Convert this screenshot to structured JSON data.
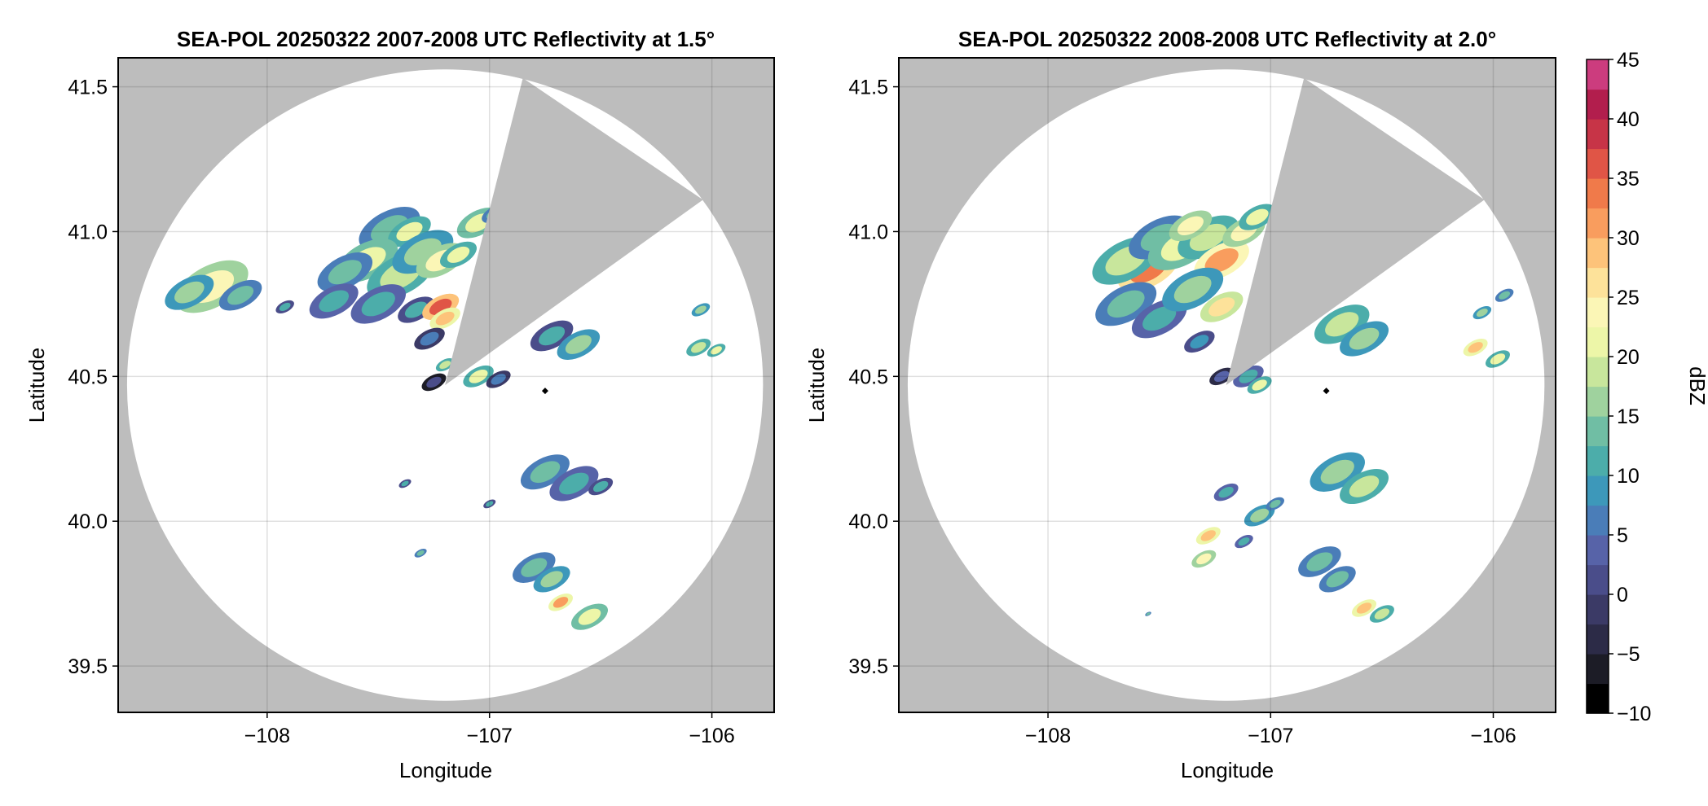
{
  "chart_data": [
    {
      "type": "heatmap",
      "title": "SEA-POL 20250322 2007-2008 UTC Reflectivity at 1.5°",
      "xlabel": "Longitude",
      "ylabel": "Latitude",
      "xlim": [
        -108.67,
        -105.72
      ],
      "ylim": [
        39.34,
        41.6
      ],
      "xticks": [
        -108,
        -107,
        -106
      ],
      "xtick_labels": [
        "−108",
        "−107",
        "−106"
      ],
      "yticks": [
        39.5,
        40.0,
        40.5,
        41.0,
        41.5
      ],
      "ytick_labels": [
        "39.5",
        "40.0",
        "40.5",
        "41.0",
        "41.5"
      ],
      "grid": true,
      "background_color": "#bdbdbd",
      "coverage": {
        "center_lon": -107.2,
        "center_lat": 40.47,
        "radius_lat": 1.09,
        "radius_lon": 1.43,
        "blocked_sector_lonlat": [
          [
            -107.2,
            40.47
          ],
          [
            -106.85,
            41.53
          ],
          [
            -106.04,
            41.11
          ]
        ]
      },
      "marker": {
        "lon": -106.75,
        "lat": 40.45,
        "shape": "diamond",
        "color": "#000000"
      },
      "echoes": [
        {
          "lon": -108.25,
          "lat": 40.81,
          "dbz": 24,
          "size": 0.12
        },
        {
          "lon": -108.35,
          "lat": 40.79,
          "dbz": 16,
          "size": 0.08
        },
        {
          "lon": -108.12,
          "lat": 40.78,
          "dbz": 14,
          "size": 0.07
        },
        {
          "lon": -107.92,
          "lat": 40.74,
          "dbz": 10,
          "size": 0.03
        },
        {
          "lon": -107.45,
          "lat": 41.01,
          "dbz": 14,
          "size": 0.1
        },
        {
          "lon": -107.36,
          "lat": 41.0,
          "dbz": 20,
          "size": 0.07
        },
        {
          "lon": -107.55,
          "lat": 40.9,
          "dbz": 22,
          "size": 0.1
        },
        {
          "lon": -107.65,
          "lat": 40.86,
          "dbz": 14,
          "size": 0.09
        },
        {
          "lon": -107.7,
          "lat": 40.76,
          "dbz": 12,
          "size": 0.08
        },
        {
          "lon": -107.4,
          "lat": 40.85,
          "dbz": 18,
          "size": 0.11
        },
        {
          "lon": -107.3,
          "lat": 40.93,
          "dbz": 16,
          "size": 0.1
        },
        {
          "lon": -107.22,
          "lat": 40.9,
          "dbz": 24,
          "size": 0.08
        },
        {
          "lon": -107.14,
          "lat": 40.92,
          "dbz": 20,
          "size": 0.06
        },
        {
          "lon": -107.05,
          "lat": 41.03,
          "dbz": 22,
          "size": 0.07
        },
        {
          "lon": -106.98,
          "lat": 41.06,
          "dbz": 14,
          "size": 0.04
        },
        {
          "lon": -107.5,
          "lat": 40.75,
          "dbz": 12,
          "size": 0.09
        },
        {
          "lon": -107.33,
          "lat": 40.73,
          "dbz": 10,
          "size": 0.06
        },
        {
          "lon": -107.22,
          "lat": 40.74,
          "dbz": 36,
          "size": 0.06
        },
        {
          "lon": -107.2,
          "lat": 40.7,
          "dbz": 28,
          "size": 0.05
        },
        {
          "lon": -107.27,
          "lat": 40.63,
          "dbz": 6,
          "size": 0.05
        },
        {
          "lon": -107.2,
          "lat": 40.54,
          "dbz": 18,
          "size": 0.03
        },
        {
          "lon": -107.25,
          "lat": 40.48,
          "dbz": 2,
          "size": 0.04
        },
        {
          "lon": -107.05,
          "lat": 40.5,
          "dbz": 20,
          "size": 0.05
        },
        {
          "lon": -106.96,
          "lat": 40.49,
          "dbz": 6,
          "size": 0.04
        },
        {
          "lon": -106.72,
          "lat": 40.64,
          "dbz": 10,
          "size": 0.07
        },
        {
          "lon": -106.6,
          "lat": 40.61,
          "dbz": 16,
          "size": 0.07
        },
        {
          "lon": -106.06,
          "lat": 40.6,
          "dbz": 18,
          "size": 0.04
        },
        {
          "lon": -105.98,
          "lat": 40.59,
          "dbz": 20,
          "size": 0.03
        },
        {
          "lon": -106.05,
          "lat": 40.73,
          "dbz": 16,
          "size": 0.03
        },
        {
          "lon": -106.75,
          "lat": 40.17,
          "dbz": 14,
          "size": 0.08
        },
        {
          "lon": -106.62,
          "lat": 40.13,
          "dbz": 12,
          "size": 0.08
        },
        {
          "lon": -106.5,
          "lat": 40.12,
          "dbz": 10,
          "size": 0.04
        },
        {
          "lon": -107.38,
          "lat": 40.13,
          "dbz": 10,
          "size": 0.02
        },
        {
          "lon": -107.0,
          "lat": 40.06,
          "dbz": 10,
          "size": 0.02
        },
        {
          "lon": -107.31,
          "lat": 39.89,
          "dbz": 14,
          "size": 0.02
        },
        {
          "lon": -106.8,
          "lat": 39.84,
          "dbz": 14,
          "size": 0.07
        },
        {
          "lon": -106.72,
          "lat": 39.8,
          "dbz": 16,
          "size": 0.06
        },
        {
          "lon": -106.68,
          "lat": 39.72,
          "dbz": 30,
          "size": 0.04
        },
        {
          "lon": -106.55,
          "lat": 39.67,
          "dbz": 22,
          "size": 0.06
        }
      ]
    },
    {
      "type": "heatmap",
      "title": "SEA-POL 20250322 2008-2008 UTC Reflectivity at 2.0°",
      "xlabel": "Longitude",
      "ylabel": "Latitude",
      "xlim": [
        -108.67,
        -105.72
      ],
      "ylim": [
        39.34,
        41.6
      ],
      "xticks": [
        -108,
        -107,
        -106
      ],
      "xtick_labels": [
        "−108",
        "−107",
        "−106"
      ],
      "yticks": [
        39.5,
        40.0,
        40.5,
        41.0,
        41.5
      ],
      "ytick_labels": [
        "39.5",
        "40.0",
        "40.5",
        "41.0",
        "41.5"
      ],
      "grid": true,
      "background_color": "#bdbdbd",
      "coverage": {
        "center_lon": -107.2,
        "center_lat": 40.47,
        "radius_lat": 1.09,
        "radius_lon": 1.43,
        "blocked_sector_lonlat": [
          [
            -107.2,
            40.47
          ],
          [
            -106.85,
            41.53
          ],
          [
            -106.04,
            41.11
          ]
        ]
      },
      "marker": {
        "lon": -106.75,
        "lat": 40.45,
        "shape": "diamond",
        "color": "#000000"
      },
      "echoes": [
        {
          "lon": -107.55,
          "lat": 40.87,
          "dbz": 34,
          "size": 0.1
        },
        {
          "lon": -107.65,
          "lat": 40.9,
          "dbz": 18,
          "size": 0.11
        },
        {
          "lon": -107.5,
          "lat": 40.98,
          "dbz": 14,
          "size": 0.1
        },
        {
          "lon": -107.4,
          "lat": 40.95,
          "dbz": 22,
          "size": 0.11
        },
        {
          "lon": -107.28,
          "lat": 40.98,
          "dbz": 18,
          "size": 0.1
        },
        {
          "lon": -107.22,
          "lat": 40.9,
          "dbz": 32,
          "size": 0.09
        },
        {
          "lon": -107.36,
          "lat": 41.02,
          "dbz": 24,
          "size": 0.07
        },
        {
          "lon": -107.12,
          "lat": 41.0,
          "dbz": 24,
          "size": 0.07
        },
        {
          "lon": -107.06,
          "lat": 41.05,
          "dbz": 20,
          "size": 0.06
        },
        {
          "lon": -107.65,
          "lat": 40.75,
          "dbz": 14,
          "size": 0.1
        },
        {
          "lon": -107.5,
          "lat": 40.7,
          "dbz": 12,
          "size": 0.09
        },
        {
          "lon": -107.35,
          "lat": 40.8,
          "dbz": 16,
          "size": 0.1
        },
        {
          "lon": -107.22,
          "lat": 40.74,
          "dbz": 26,
          "size": 0.07
        },
        {
          "lon": -107.32,
          "lat": 40.62,
          "dbz": 8,
          "size": 0.05
        },
        {
          "lon": -107.22,
          "lat": 40.5,
          "dbz": 4,
          "size": 0.04
        },
        {
          "lon": -107.1,
          "lat": 40.5,
          "dbz": 12,
          "size": 0.05
        },
        {
          "lon": -107.05,
          "lat": 40.47,
          "dbz": 20,
          "size": 0.04
        },
        {
          "lon": -106.68,
          "lat": 40.68,
          "dbz": 18,
          "size": 0.09
        },
        {
          "lon": -106.58,
          "lat": 40.63,
          "dbz": 16,
          "size": 0.08
        },
        {
          "lon": -106.08,
          "lat": 40.6,
          "dbz": 28,
          "size": 0.04
        },
        {
          "lon": -105.98,
          "lat": 40.56,
          "dbz": 20,
          "size": 0.04
        },
        {
          "lon": -106.05,
          "lat": 40.72,
          "dbz": 16,
          "size": 0.03
        },
        {
          "lon": -105.95,
          "lat": 40.78,
          "dbz": 14,
          "size": 0.03
        },
        {
          "lon": -106.7,
          "lat": 40.17,
          "dbz": 16,
          "size": 0.09
        },
        {
          "lon": -106.58,
          "lat": 40.12,
          "dbz": 18,
          "size": 0.08
        },
        {
          "lon": -107.2,
          "lat": 40.1,
          "dbz": 12,
          "size": 0.04
        },
        {
          "lon": -107.05,
          "lat": 40.02,
          "dbz": 16,
          "size": 0.05
        },
        {
          "lon": -106.98,
          "lat": 40.06,
          "dbz": 14,
          "size": 0.03
        },
        {
          "lon": -107.28,
          "lat": 39.95,
          "dbz": 28,
          "size": 0.04
        },
        {
          "lon": -107.3,
          "lat": 39.87,
          "dbz": 24,
          "size": 0.04
        },
        {
          "lon": -107.12,
          "lat": 39.93,
          "dbz": 12,
          "size": 0.03
        },
        {
          "lon": -106.78,
          "lat": 39.86,
          "dbz": 14,
          "size": 0.07
        },
        {
          "lon": -106.7,
          "lat": 39.8,
          "dbz": 14,
          "size": 0.06
        },
        {
          "lon": -106.58,
          "lat": 39.7,
          "dbz": 28,
          "size": 0.04
        },
        {
          "lon": -106.5,
          "lat": 39.68,
          "dbz": 18,
          "size": 0.04
        },
        {
          "lon": -107.55,
          "lat": 39.68,
          "dbz": 14,
          "size": 0.01
        }
      ]
    }
  ],
  "colorbar": {
    "label": "dBZ",
    "min": -10,
    "max": 45,
    "levels_step": 2.5,
    "ticks": [
      -10,
      -5,
      0,
      5,
      10,
      15,
      20,
      25,
      30,
      35,
      40,
      45
    ],
    "tick_labels": [
      "−10",
      "−5",
      "0",
      "5",
      "10",
      "15",
      "20",
      "25",
      "30",
      "35",
      "40",
      "45"
    ],
    "colors": [
      "#000000",
      "#1c1c26",
      "#2c2b47",
      "#3b3a66",
      "#4a4d8a",
      "#5763a8",
      "#4a7db8",
      "#3d98ba",
      "#4cadaa",
      "#70bea4",
      "#9fd29e",
      "#c8e69c",
      "#edf6a8",
      "#fbf6b6",
      "#fde29a",
      "#fdc37a",
      "#f99d5e",
      "#f07a4a",
      "#e05546",
      "#c73447",
      "#b21e4d",
      "#cc3c7e",
      "#e064a2",
      "#ee90c3",
      "#d9abd3",
      "#b78dc2",
      "#8e61a6",
      "#66337f",
      "#420a5c"
    ]
  }
}
